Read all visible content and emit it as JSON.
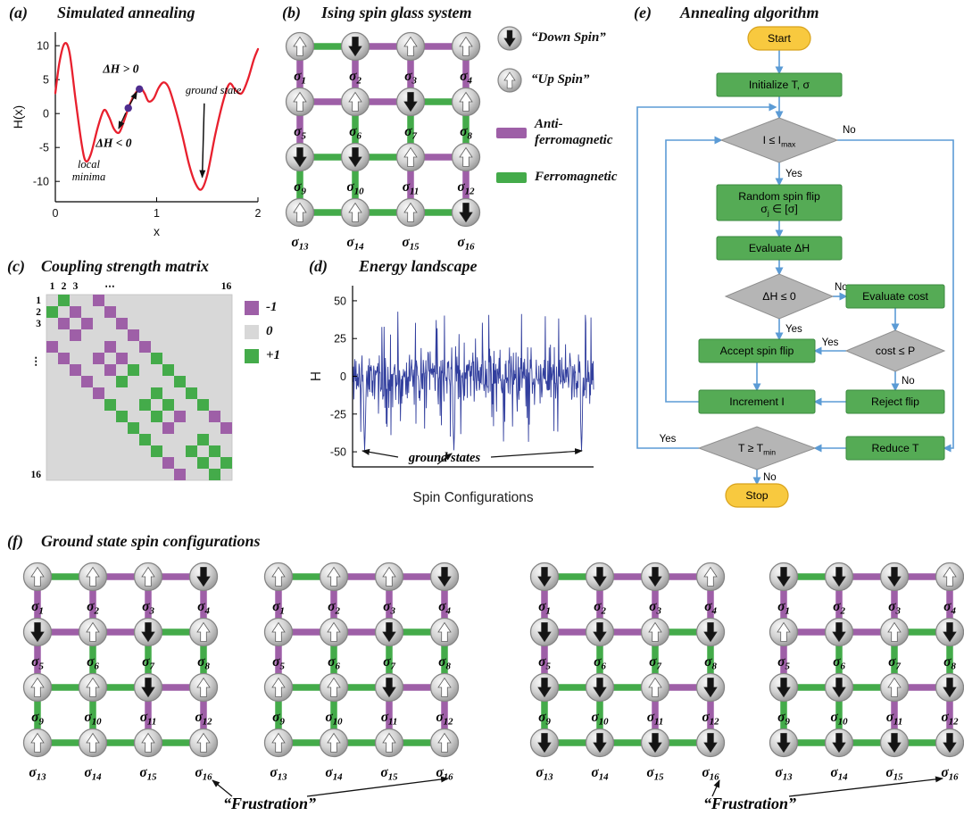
{
  "panels": {
    "a": {
      "tag": "(a)",
      "title": "Simulated annealing"
    },
    "b": {
      "tag": "(b)",
      "title": "Ising spin glass system"
    },
    "c": {
      "tag": "(c)",
      "title": "Coupling strength matrix"
    },
    "d": {
      "tag": "(d)",
      "title": "Energy landscape"
    },
    "e": {
      "tag": "(e)",
      "title": "Annealing algorithm"
    },
    "f": {
      "tag": "(f)",
      "title": "Ground state spin configurations"
    }
  },
  "colors": {
    "ferromagnetic_green": "#44ab4a",
    "antiferromagnetic_purple": "#9e5fa7",
    "curve_red": "#e8202e",
    "noise_blue": "#323f9e",
    "dot_purple": "#4f2d8f",
    "flow_green": "#55ab55",
    "flow_gray": "#b5b5b5",
    "flow_yellow": "#f8c93f",
    "flow_arrow_blue": "#5b9bd5",
    "matrix_zero_gray": "#d8d8d8",
    "spin_up_fill": "#ffffff",
    "spin_down_fill": "#141414"
  },
  "lattice": {
    "size": 4,
    "labels": [
      "σ_{1}",
      "σ_{2}",
      "σ_{3}",
      "σ_{4}",
      "σ_{5}",
      "σ_{6}",
      "σ_{7}",
      "σ_{8}",
      "σ_{9}",
      "σ_{10}",
      "σ_{11}",
      "σ_{12}",
      "σ_{13}",
      "σ_{14}",
      "σ_{15}",
      "σ_{16}"
    ],
    "horizontal_couplings": [
      [
        1,
        -1,
        -1
      ],
      [
        -1,
        -1,
        1
      ],
      [
        1,
        1,
        -1
      ],
      [
        1,
        1,
        1
      ]
    ],
    "vertical_couplings": [
      [
        -1,
        -1,
        -1,
        -1
      ],
      [
        -1,
        1,
        1,
        1
      ],
      [
        1,
        1,
        -1,
        -1
      ]
    ]
  },
  "panel_b": {
    "spins": [
      1,
      -1,
      1,
      1,
      1,
      1,
      -1,
      1,
      -1,
      -1,
      1,
      1,
      1,
      1,
      1,
      -1
    ],
    "legend": {
      "down": "“Down Spin”",
      "up": "“Up Spin”",
      "anti": "Anti-\nferromagnetic",
      "ferro": "Ferromagnetic"
    }
  },
  "chart_data": [
    {
      "panel": "a",
      "type": "line",
      "title": "Simulated annealing",
      "xlabel": "x",
      "ylabel": "H(x)",
      "xlim": [
        0,
        2
      ],
      "ylim": [
        -13,
        12
      ],
      "xticks": [
        0,
        1,
        2
      ],
      "yticks": [
        -10,
        -5,
        0,
        5,
        10
      ],
      "line_color": "#e8202e",
      "curve_x": [
        0,
        0.04,
        0.09,
        0.14,
        0.2,
        0.26,
        0.3,
        0.35,
        0.42,
        0.48,
        0.53,
        0.58,
        0.63,
        0.68,
        0.72,
        0.76,
        0.8,
        0.84,
        0.88,
        0.92,
        0.97,
        1.02,
        1.07,
        1.12,
        1.18,
        1.25,
        1.32,
        1.38,
        1.44,
        1.5,
        1.58,
        1.66,
        1.72,
        1.78,
        1.84,
        1.9,
        1.96,
        2.0
      ],
      "curve_y": [
        3.0,
        7.5,
        10.3,
        9.0,
        2.0,
        -4.5,
        -7.0,
        -6.0,
        -2.0,
        0.5,
        -0.5,
        -2.3,
        -2.8,
        -1.0,
        0.8,
        2.2,
        3.2,
        3.8,
        3.0,
        1.8,
        2.2,
        3.8,
        4.6,
        3.8,
        1.0,
        -3.0,
        -7.5,
        -10.2,
        -11.2,
        -9.0,
        -3.0,
        2.0,
        4.4,
        3.4,
        3.0,
        5.0,
        8.0,
        9.5
      ],
      "dots": [
        [
          0.72,
          0.8
        ],
        [
          0.83,
          3.6
        ]
      ],
      "annotations": {
        "dh_pos": {
          "text": "ΔH > 0",
          "x": 0.47,
          "y": 6.0
        },
        "dh_neg": {
          "text": "ΔH < 0",
          "x": 0.4,
          "y": -4.9
        },
        "ground_state": {
          "text": "ground state",
          "x": 1.56,
          "y": 2.9,
          "arrow_from": [
            1.47,
            1.5
          ],
          "arrow_to": [
            1.45,
            -9.4
          ]
        },
        "local_minima": {
          "text": "local\nminima",
          "x": 0.33,
          "y": -8.0
        }
      }
    },
    {
      "panel": "d",
      "type": "line",
      "title": "Energy landscape",
      "xlabel": "Spin Configurations",
      "ylabel": "H",
      "ylim": [
        -60,
        60
      ],
      "yticks": [
        -50,
        -25,
        0,
        25,
        50
      ],
      "line_color": "#323f9e",
      "n_points": 560,
      "noise_seed": 11,
      "noise_scale": 15.5,
      "typical_range": [
        -30,
        30
      ],
      "dip_positions": [
        0.05,
        0.42,
        0.95
      ],
      "dip_value": -49,
      "annotation": "ground states"
    },
    {
      "panel": "c",
      "type": "heatmap",
      "title": "Coupling strength matrix",
      "size": 16,
      "ticks_top": [
        "1",
        "2",
        "3",
        "⋯",
        "16"
      ],
      "ticks_left": [
        "1",
        "2",
        "3",
        "⋮",
        "16"
      ],
      "legend": [
        {
          "label": "-1",
          "color": "#9e5fa7"
        },
        {
          "label": "0",
          "color": "#d8d8d8"
        },
        {
          "label": "+1",
          "color": "#44ab4a"
        }
      ],
      "note": "entries are couplings J(i,j) of the 4x4 lattice; zero elsewhere"
    }
  ],
  "panel_e": {
    "yes": "Yes",
    "no": "No",
    "nodes": {
      "start": {
        "label": "Start",
        "type": "terminal"
      },
      "init": {
        "label": "Initialize T, σ",
        "type": "process"
      },
      "cond_iter": {
        "label": "I ≤ I_{max}",
        "type": "decision"
      },
      "random": {
        "label": "Random spin flip\nσ_{j} ∈ [σ]",
        "type": "process"
      },
      "eval_dh": {
        "label": "Evaluate ΔH",
        "type": "process"
      },
      "cond_dh": {
        "label": "ΔH ≤ 0",
        "type": "decision"
      },
      "eval_cost": {
        "label": "Evaluate cost",
        "type": "process"
      },
      "accept": {
        "label": "Accept spin flip",
        "type": "process"
      },
      "cond_cost": {
        "label": "cost ≤ P",
        "type": "decision"
      },
      "increment": {
        "label": "Increment I",
        "type": "process"
      },
      "reject": {
        "label": "Reject flip",
        "type": "process"
      },
      "cond_temp": {
        "label": "T ≥ T_{min}",
        "type": "decision"
      },
      "reduce": {
        "label": "Reduce T",
        "type": "process"
      },
      "stop": {
        "label": "Stop",
        "type": "terminal"
      }
    },
    "edges": [
      {
        "from": "start",
        "to": "init"
      },
      {
        "from": "init",
        "to": "cond_iter"
      },
      {
        "from": "cond_iter",
        "to": "random",
        "label": "Yes"
      },
      {
        "from": "random",
        "to": "eval_dh"
      },
      {
        "from": "eval_dh",
        "to": "cond_dh"
      },
      {
        "from": "cond_dh",
        "to": "accept",
        "label": "Yes"
      },
      {
        "from": "cond_dh",
        "to": "eval_cost",
        "label": "No"
      },
      {
        "from": "eval_cost",
        "to": "cond_cost"
      },
      {
        "from": "cond_cost",
        "to": "accept",
        "label": "Yes"
      },
      {
        "from": "cond_cost",
        "to": "reject",
        "label": "No"
      },
      {
        "from": "accept",
        "to": "increment"
      },
      {
        "from": "reject",
        "to": "increment"
      },
      {
        "from": "increment",
        "to": "cond_iter"
      },
      {
        "from": "cond_iter",
        "to": "reduce",
        "label": "No"
      },
      {
        "from": "reduce",
        "to": "cond_temp"
      },
      {
        "from": "cond_temp",
        "to": "cond_iter",
        "label": "Yes"
      },
      {
        "from": "cond_temp",
        "to": "stop",
        "label": "No"
      }
    ]
  },
  "panel_f": {
    "frustration": "“Frustration”",
    "grids": [
      {
        "spins": [
          1,
          1,
          1,
          -1,
          -1,
          1,
          -1,
          1,
          1,
          1,
          -1,
          1,
          1,
          1,
          1,
          1
        ]
      },
      {
        "spins": [
          1,
          1,
          1,
          -1,
          1,
          1,
          -1,
          1,
          1,
          1,
          -1,
          1,
          1,
          1,
          1,
          1
        ]
      },
      {
        "spins": [
          -1,
          -1,
          -1,
          1,
          -1,
          -1,
          1,
          -1,
          -1,
          -1,
          1,
          -1,
          -1,
          -1,
          -1,
          -1
        ]
      },
      {
        "spins": [
          -1,
          -1,
          -1,
          1,
          1,
          -1,
          1,
          -1,
          -1,
          -1,
          1,
          -1,
          -1,
          -1,
          -1,
          -1
        ]
      }
    ]
  }
}
